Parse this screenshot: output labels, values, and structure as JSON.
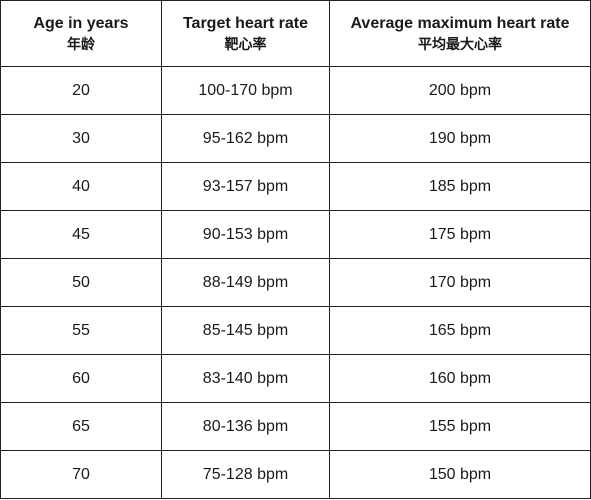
{
  "table": {
    "headers": [
      {
        "en": "Age in years",
        "zh": "年龄"
      },
      {
        "en": "Target heart rate",
        "zh": "靶心率"
      },
      {
        "en": "Average maximum heart rate",
        "zh": "平均最大心率"
      }
    ],
    "rows": [
      {
        "age": "20",
        "target": "100-170 bpm",
        "max": "200 bpm"
      },
      {
        "age": "30",
        "target": "95-162 bpm",
        "max": "190 bpm"
      },
      {
        "age": "40",
        "target": "93-157 bpm",
        "max": "185 bpm"
      },
      {
        "age": "45",
        "target": "90-153 bpm",
        "max": "175 bpm"
      },
      {
        "age": "50",
        "target": "88-149 bpm",
        "max": "170 bpm"
      },
      {
        "age": "55",
        "target": "85-145 bpm",
        "max": "165 bpm"
      },
      {
        "age": "60",
        "target": "83-140 bpm",
        "max": "160 bpm"
      },
      {
        "age": "65",
        "target": "80-136 bpm",
        "max": "155 bpm"
      },
      {
        "age": "70",
        "target": "75-128 bpm",
        "max": "150 bpm"
      }
    ]
  }
}
